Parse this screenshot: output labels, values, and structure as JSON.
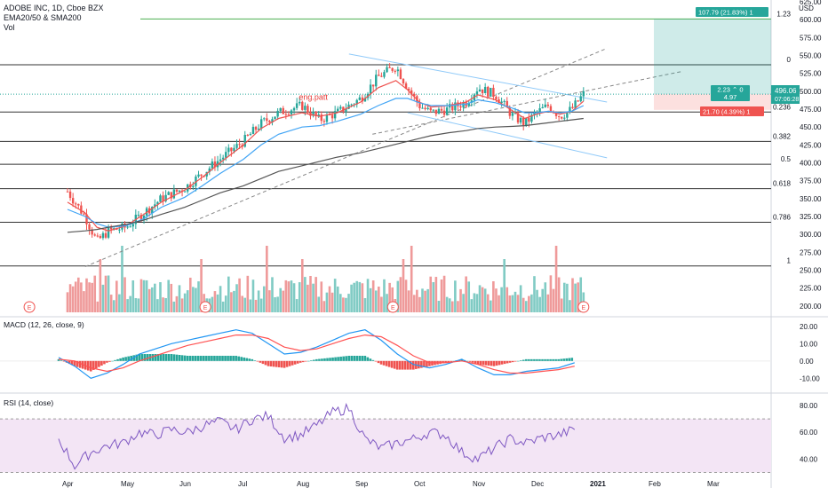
{
  "header": {
    "symbol_line": "ADOBE INC, 1D, Cboe BZX",
    "indicator": "EMA20/50 & SMA200",
    "vol_label": "Vol",
    "currency": "USD"
  },
  "colors": {
    "up": "#26a69a",
    "down": "#ef5350",
    "ema20": "#ef5350",
    "ema50": "#42a5f5",
    "sma200": "#555555",
    "macd_line": "#2196f3",
    "signal_line": "#ff5252",
    "rsi_line": "#7e57c2",
    "rsi_bg": "#f3e5f5"
  },
  "chart_data": [
    {
      "type": "line",
      "name": "price-panel",
      "title": "ADOBE INC, 1D, Cboe BZX",
      "ylabel": "USD",
      "ylim": [
        185,
        625
      ],
      "y_ticks": [
        "625.00",
        "600.00",
        "575.00",
        "550.00",
        "525.00",
        "500.00",
        "475.00",
        "450.00",
        "425.00",
        "400.00",
        "375.00",
        "350.00",
        "325.00",
        "300.00",
        "275.00",
        "250.00",
        "225.00",
        "200.00"
      ],
      "x_ticks": [
        "Apr",
        "May",
        "Jun",
        "Jul",
        "Aug",
        "Sep",
        "Oct",
        "Nov",
        "Dec",
        "2021",
        "Feb",
        "Mar"
      ],
      "price_tag": "496.06",
      "countdown": "07:06:28",
      "series": [
        {
          "name": "Close",
          "x_month": [
            3.0,
            3.3,
            3.5,
            3.7,
            4.0,
            4.3,
            4.6,
            5.0,
            5.3,
            5.6,
            6.0,
            6.3,
            6.6,
            7.0,
            7.3,
            7.6,
            8.0,
            8.3,
            8.6,
            8.8,
            9.0,
            9.2,
            9.5,
            9.8,
            10.0,
            10.3,
            10.6,
            10.8,
            11.0,
            11.2,
            11.4,
            11.6,
            11.8
          ],
          "values": [
            360,
            325,
            290,
            305,
            310,
            330,
            350,
            365,
            385,
            405,
            430,
            455,
            470,
            480,
            460,
            470,
            490,
            520,
            535,
            505,
            480,
            470,
            475,
            485,
            505,
            495,
            465,
            455,
            470,
            480,
            465,
            475,
            496
          ]
        },
        {
          "name": "EMA20",
          "values": [
            345,
            330,
            310,
            305,
            312,
            328,
            345,
            362,
            380,
            400,
            425,
            448,
            462,
            470,
            465,
            470,
            485,
            505,
            515,
            502,
            485,
            478,
            480,
            485,
            495,
            488,
            472,
            462,
            468,
            472,
            468,
            472,
            486
          ]
        },
        {
          "name": "EMA50",
          "values": [
            335,
            325,
            315,
            310,
            312,
            322,
            338,
            352,
            368,
            385,
            405,
            425,
            440,
            450,
            452,
            458,
            468,
            480,
            490,
            490,
            484,
            480,
            480,
            482,
            488,
            484,
            476,
            470,
            470,
            472,
            470,
            472,
            480
          ]
        },
        {
          "name": "SMA200",
          "values": [
            303,
            305,
            307,
            310,
            314,
            320,
            328,
            338,
            348,
            358,
            368,
            378,
            388,
            396,
            402,
            408,
            414,
            420,
            426,
            430,
            434,
            438,
            442,
            445,
            448,
            450,
            451,
            452,
            454,
            456,
            458,
            460,
            462
          ]
        }
      ],
      "fib_levels": [
        {
          "label": "1.23",
          "value": 601
        },
        {
          "label": "0",
          "value": 537
        },
        {
          "label": "0.236",
          "value": 471
        },
        {
          "label": "0.382",
          "value": 430
        },
        {
          "label": "0.5",
          "value": 398
        },
        {
          "label": "0.618",
          "value": 364
        },
        {
          "label": "0.786",
          "value": 317
        },
        {
          "label": "1",
          "value": 256
        }
      ],
      "annotations": [
        {
          "text": "eng.patt",
          "x_month": 7.4,
          "y": 478
        },
        {
          "text": "107.79 (21.83%) 1",
          "kind": "target"
        },
        {
          "text": "2.23 ⌃ 0",
          "kind": "ratio"
        },
        {
          "text": "4.97",
          "kind": "ratio"
        },
        {
          "text": "21.70 (4.39%) 1",
          "kind": "stop"
        }
      ],
      "earnings_markers": [
        "E",
        "E",
        "E",
        "E"
      ]
    },
    {
      "type": "bar",
      "name": "MACD",
      "title": "MACD (12, 26, close, 9)",
      "ylim": [
        -17,
        24
      ],
      "y_ticks": [
        "20.00",
        "10.00",
        "0.00",
        "-10.00"
      ],
      "macd_values": [
        2,
        -3,
        -10,
        -7,
        -2,
        4,
        7,
        10,
        12,
        14,
        16,
        18,
        16,
        10,
        4,
        5,
        8,
        12,
        16,
        18,
        12,
        4,
        -2,
        -4,
        -2,
        1,
        -4,
        -8,
        -8,
        -6,
        -5,
        -4,
        -1
      ],
      "signal_values": [
        1,
        0,
        -4,
        -6,
        -4,
        0,
        3,
        6,
        9,
        11,
        13,
        15,
        15,
        13,
        8,
        6,
        7,
        10,
        13,
        15,
        14,
        9,
        3,
        -1,
        -1,
        0,
        -2,
        -5,
        -7,
        -7,
        -6,
        -5,
        -3
      ],
      "histogram": [
        1,
        -3,
        -6,
        -1,
        2,
        4,
        4,
        4,
        3,
        3,
        3,
        3,
        1,
        -3,
        -4,
        -1,
        1,
        2,
        3,
        3,
        -2,
        -5,
        -5,
        -3,
        -1,
        1,
        -2,
        -3,
        -1,
        1,
        1,
        1,
        2
      ]
    },
    {
      "type": "line",
      "name": "RSI",
      "title": "RSI (14, close)",
      "ylim": [
        25,
        88
      ],
      "y_ticks": [
        "80.00",
        "60.00",
        "40.00"
      ],
      "values": [
        55,
        35,
        45,
        50,
        52,
        60,
        58,
        62,
        60,
        65,
        68,
        62,
        70,
        72,
        56,
        58,
        65,
        75,
        78,
        55,
        48,
        52,
        55,
        60,
        58,
        45,
        40,
        48,
        55,
        52,
        56,
        58,
        62
      ]
    }
  ]
}
